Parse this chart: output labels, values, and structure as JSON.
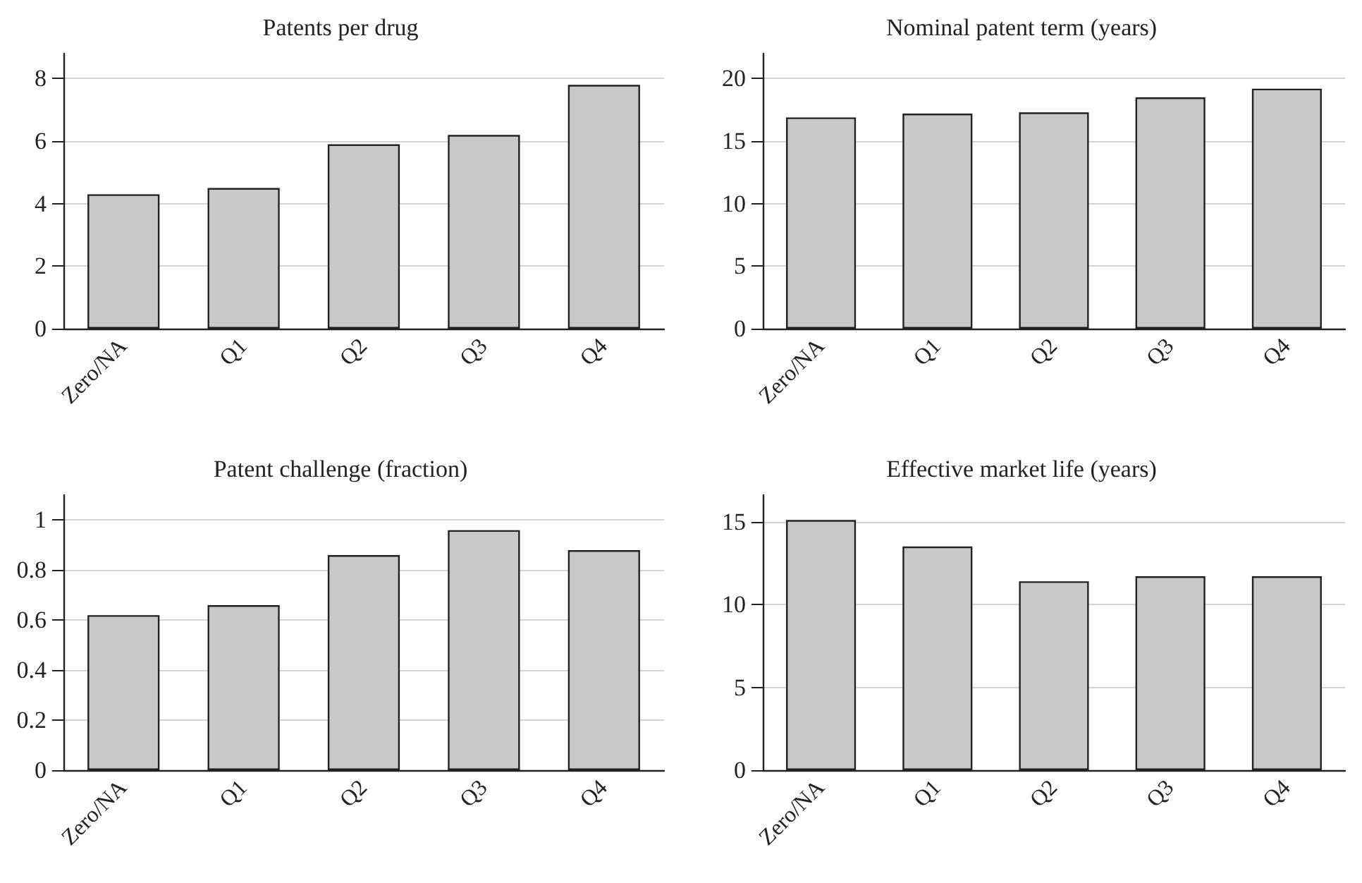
{
  "chart_data": [
    {
      "type": "bar",
      "title": "Patents per drug",
      "categories": [
        "Zero/NA",
        "Q1",
        "Q2",
        "Q3",
        "Q4"
      ],
      "values": [
        4.3,
        4.5,
        5.9,
        6.2,
        7.8
      ],
      "color": "#c8c8ca",
      "ylim": [
        0,
        8.8
      ],
      "yticks": [
        0,
        2,
        4,
        6,
        8
      ],
      "grid": "y"
    },
    {
      "type": "bar",
      "title": "Nominal patent term (years)",
      "categories": [
        "Zero/NA",
        "Q1",
        "Q2",
        "Q3",
        "Q4"
      ],
      "values": [
        16.9,
        17.2,
        17.3,
        18.5,
        19.2
      ],
      "color": "#c8c8ca",
      "ylim": [
        0,
        22
      ],
      "yticks": [
        0,
        5,
        10,
        15,
        20
      ],
      "grid": "y"
    },
    {
      "type": "bar",
      "title": "Patent challenge (fraction)",
      "categories": [
        "Zero/NA",
        "Q1",
        "Q2",
        "Q3",
        "Q4"
      ],
      "values": [
        0.62,
        0.66,
        0.86,
        0.96,
        0.88
      ],
      "color": "#c8c8ca",
      "ylim": [
        0,
        1.1
      ],
      "yticks": [
        0,
        0.2,
        0.4,
        0.6,
        0.8,
        1
      ],
      "grid": "y"
    },
    {
      "type": "bar",
      "title": "Effective market life (years)",
      "categories": [
        "Zero/NA",
        "Q1",
        "Q2",
        "Q3",
        "Q4"
      ],
      "values": [
        15.1,
        13.5,
        11.4,
        11.7,
        11.7
      ],
      "color": "#c8c8ca",
      "ylim": [
        0,
        16.6
      ],
      "yticks": [
        0,
        5,
        10,
        15
      ],
      "grid": "y"
    }
  ]
}
